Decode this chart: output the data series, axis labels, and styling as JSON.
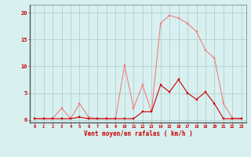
{
  "hours": [
    0,
    1,
    2,
    3,
    4,
    5,
    6,
    7,
    8,
    9,
    10,
    11,
    12,
    13,
    14,
    15,
    16,
    17,
    18,
    19,
    20,
    21,
    22,
    23
  ],
  "rafales": [
    0.2,
    0.2,
    0.2,
    2.2,
    0.2,
    3.0,
    0.5,
    0.2,
    0.2,
    0.2,
    10.2,
    2.2,
    6.5,
    1.5,
    18.0,
    19.5,
    19.0,
    18.0,
    16.5,
    13.0,
    11.5,
    3.0,
    0.3,
    0.3
  ],
  "moyen": [
    0.2,
    0.2,
    0.2,
    0.2,
    0.2,
    0.5,
    0.2,
    0.2,
    0.2,
    0.2,
    0.2,
    0.2,
    1.5,
    1.5,
    6.5,
    5.2,
    7.5,
    5.0,
    3.8,
    5.2,
    3.0,
    0.2,
    0.2,
    0.2
  ],
  "line_color_rafales": "#f08080",
  "line_color_moyen": "#cc0000",
  "bg_color": "#d8f0f0",
  "grid_color": "#b0d0d0",
  "axis_label_color": "#cc0000",
  "tick_label_color": "#cc0000",
  "xlabel": "Vent moyen/en rafales ( km/h )",
  "ylabel_ticks": [
    0,
    5,
    10,
    15,
    20
  ],
  "ylim": [
    -0.5,
    21.5
  ],
  "xlim": [
    -0.5,
    23.5
  ]
}
